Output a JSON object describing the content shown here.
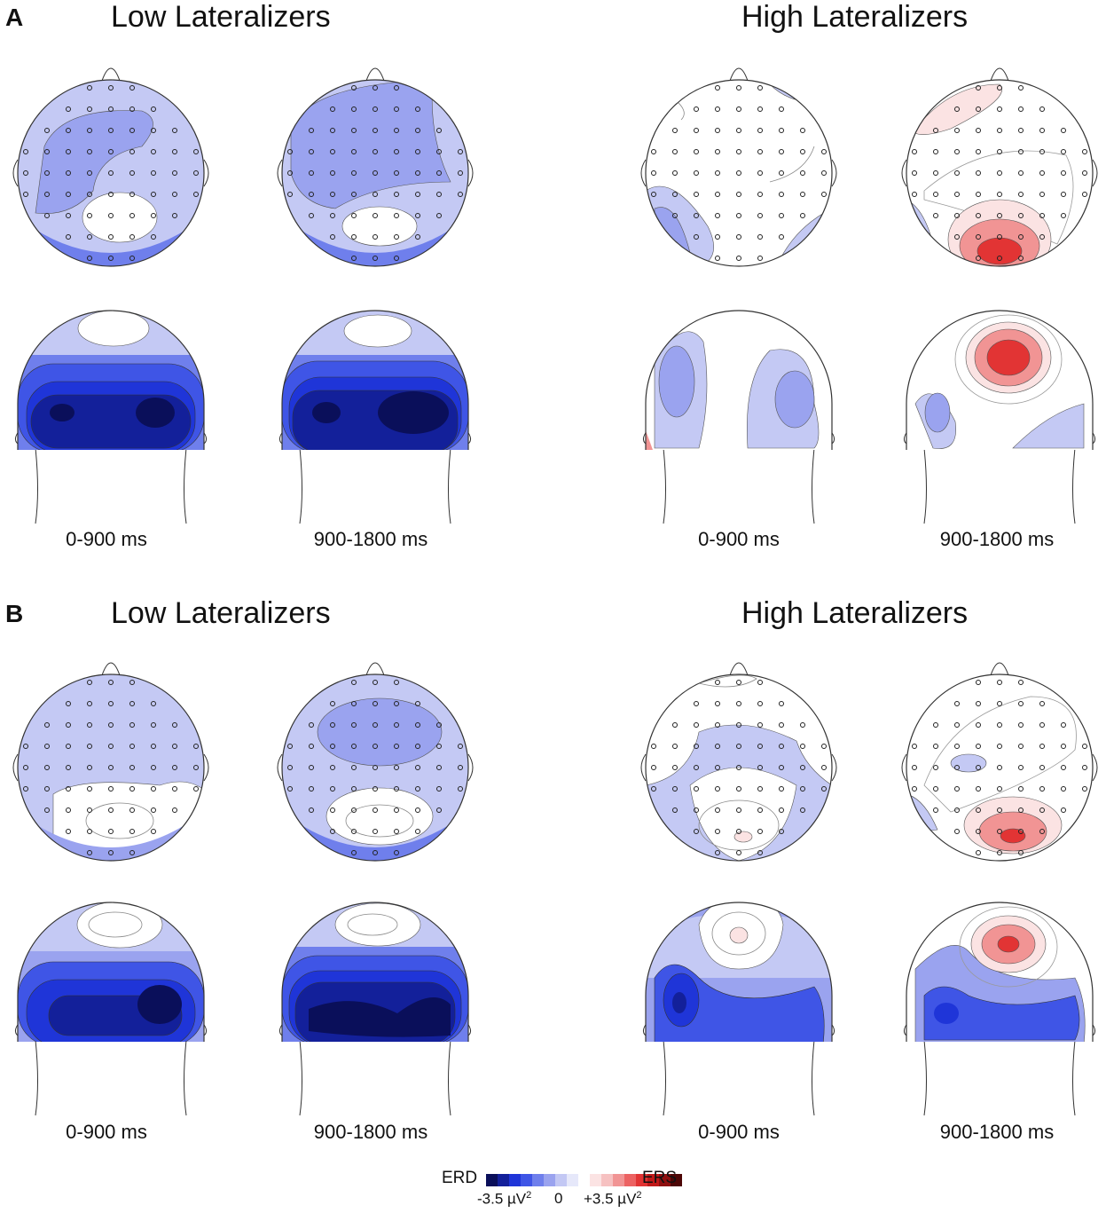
{
  "panels": [
    {
      "letter": "A",
      "groups": [
        {
          "title": "Low Lateralizers",
          "times": [
            "0-900 ms",
            "900-1800 ms"
          ]
        },
        {
          "title": "High Lateralizers",
          "times": [
            "0-900 ms",
            "900-1800 ms"
          ]
        }
      ]
    },
    {
      "letter": "B",
      "groups": [
        {
          "title": "Low Lateralizers",
          "times": [
            "0-900 ms",
            "900-1800 ms"
          ]
        },
        {
          "title": "High Lateralizers",
          "times": [
            "0-900 ms",
            "900-1800 ms"
          ]
        }
      ]
    }
  ],
  "legend": {
    "left_label": "ERD",
    "right_label": "ERS",
    "min_label": "-3.5 µV",
    "zero_label": "0",
    "max_label": "+3.5 µV",
    "unit_power": "2",
    "colors": [
      "#0a0f5a",
      "#13209a",
      "#1f35d8",
      "#3f55e6",
      "#6f7fec",
      "#9aa3ef",
      "#c3c8f4",
      "#e6e8fa",
      "#ffffff",
      "#fbe3e3",
      "#f6c1c1",
      "#f19494",
      "#ec6262",
      "#e23434",
      "#c01a1a",
      "#8e0f0f",
      "#4d0606"
    ]
  },
  "colors": {
    "deep_blue": "#0b1a7a",
    "blue": "#2a42e0",
    "mid_blue": "#7a86ea",
    "light_blue": "#c4c9f4",
    "light_red": "#f6c1c1",
    "red": "#e84848"
  }
}
